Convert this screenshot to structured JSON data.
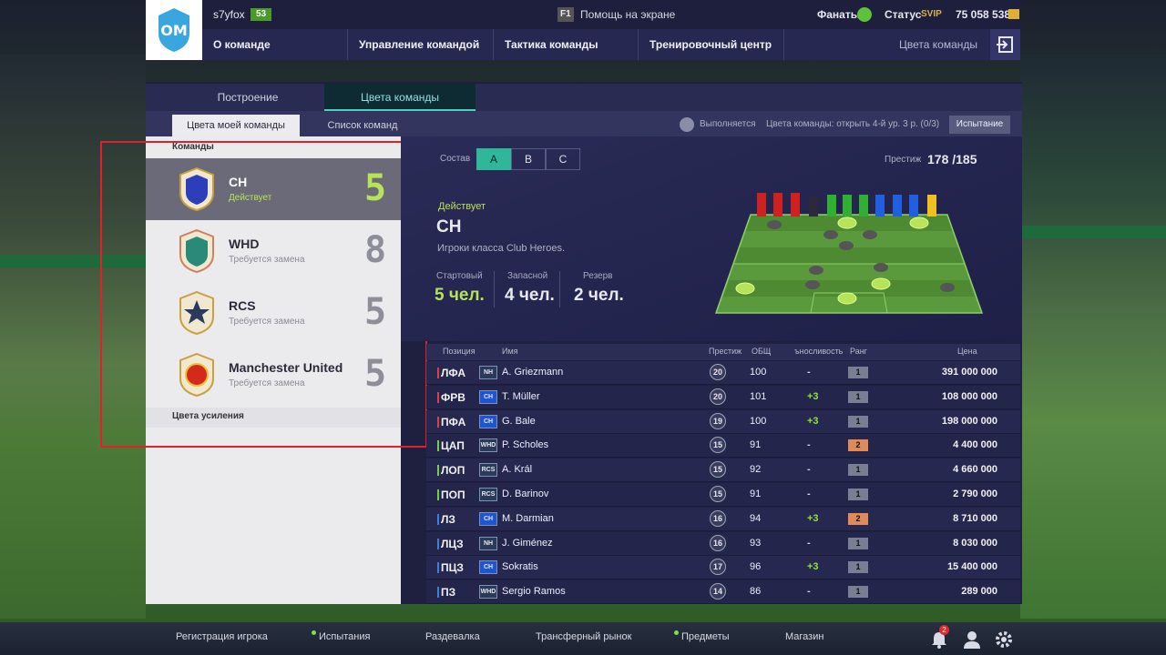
{
  "header": {
    "username": "s7yfox",
    "level": "53",
    "help_key": "F1",
    "help_text": "Помощь на экране",
    "fans_label": "Фанаты",
    "status_label": "Статус",
    "status_value": "SVIP",
    "coins": "75 058 538"
  },
  "nav": {
    "items": [
      "О команде",
      "Управление командой",
      "Тактика команды",
      "Тренировочный центр",
      "Цвета команды"
    ]
  },
  "tabs": {
    "primary": [
      "Построение",
      "Цвета команды"
    ],
    "secondary": [
      "Цвета моей команды",
      "Список команд"
    ],
    "quest_status": "Выполняется",
    "quest_text": "Цвета команды: открыть 4-й ур. 3 р. (0/3)",
    "quest_button": "Испытание"
  },
  "teams": {
    "section_title": "Команды",
    "footer_title": "Цвета усиления",
    "items": [
      {
        "name": "CH",
        "status": "Действует",
        "count": "5"
      },
      {
        "name": "WHD",
        "status": "Требуется замена",
        "count": "8"
      },
      {
        "name": "RCS",
        "status": "Требуется замена",
        "count": "5"
      },
      {
        "name": "Manchester United",
        "status": "Требуется замена",
        "count": "5"
      }
    ]
  },
  "lineup": {
    "label": "Состав",
    "options": [
      "A",
      "B",
      "C"
    ],
    "prestige_label": "Престиж",
    "prestige_value": "178 /185",
    "active_label": "Действует",
    "team_name": "CH",
    "description": "Игроки класса Club Heroes.",
    "stats": [
      {
        "label": "Стартовый",
        "value": "5 чел."
      },
      {
        "label": "Запасной",
        "value": "4 чел."
      },
      {
        "label": "Резерв",
        "value": "2 чел."
      }
    ]
  },
  "table": {
    "headers": {
      "position": "Позиция",
      "name": "Имя",
      "prestige": "Престиж",
      "ovr": "ОБЩ",
      "dev": "ъносливость",
      "rank": "Ранг",
      "price": "Цена"
    },
    "rows": [
      {
        "pos": "ЛФА",
        "club": "NH",
        "name": "A. Griezmann",
        "prestige": "20",
        "ovr": "100",
        "dev": "-",
        "rank": "1",
        "price": "391 000 000",
        "bar": "#e04040",
        "clubcolor": "#2a3b5a"
      },
      {
        "pos": "ФРВ",
        "club": "CH",
        "name": "T. Müller",
        "prestige": "20",
        "ovr": "101",
        "dev": "+3",
        "rank": "1",
        "price": "108 000 000",
        "bar": "#e04040",
        "clubcolor": "#1e55d6"
      },
      {
        "pos": "ПФА",
        "club": "CH",
        "name": "G. Bale",
        "prestige": "19",
        "ovr": "100",
        "dev": "+3",
        "rank": "1",
        "price": "198 000 000",
        "bar": "#e04040",
        "clubcolor": "#1e55d6"
      },
      {
        "pos": "ЦАП",
        "club": "WHD",
        "name": "P. Scholes",
        "prestige": "15",
        "ovr": "91",
        "dev": "-",
        "rank": "2",
        "price": "4 400 000",
        "bar": "#6fd14a",
        "clubcolor": "#2a3b5a"
      },
      {
        "pos": "ЛОП",
        "club": "RCS",
        "name": "A. Král",
        "prestige": "15",
        "ovr": "92",
        "dev": "-",
        "rank": "1",
        "price": "4 660 000",
        "bar": "#6fd14a",
        "clubcolor": "#2a3b5a"
      },
      {
        "pos": "ПОП",
        "club": "RCS",
        "name": "D. Barinov",
        "prestige": "15",
        "ovr": "91",
        "dev": "-",
        "rank": "1",
        "price": "2 790 000",
        "bar": "#6fd14a",
        "clubcolor": "#2a3b5a"
      },
      {
        "pos": "ЛЗ",
        "club": "CH",
        "name": "M. Darmian",
        "prestige": "16",
        "ovr": "94",
        "dev": "+3",
        "rank": "2",
        "price": "8 710 000",
        "bar": "#3f7de0",
        "clubcolor": "#1e55d6"
      },
      {
        "pos": "ЛЦЗ",
        "club": "NH",
        "name": "J. Giménez",
        "prestige": "16",
        "ovr": "93",
        "dev": "-",
        "rank": "1",
        "price": "8 030 000",
        "bar": "#3f7de0",
        "clubcolor": "#2a3b5a"
      },
      {
        "pos": "ПЦЗ",
        "club": "CH",
        "name": "Sokratis",
        "prestige": "17",
        "ovr": "96",
        "dev": "+3",
        "rank": "1",
        "price": "15 400 000",
        "bar": "#3f7de0",
        "clubcolor": "#1e55d6"
      },
      {
        "pos": "ПЗ",
        "club": "WHD",
        "name": "Sergio Ramos",
        "prestige": "14",
        "ovr": "86",
        "dev": "-",
        "rank": "1",
        "price": "289 000",
        "bar": "#3f7de0",
        "clubcolor": "#2a3b5a"
      }
    ]
  },
  "bottom_nav": [
    "Регистрация игрока",
    "Испытания",
    "Раздевалка",
    "Трансферный рынок",
    "Предметы",
    "Магазин"
  ],
  "notifications": "2",
  "colors": {
    "accent_green": "#8fe23e",
    "panel": "#1f1f3f",
    "active_tab": "#0e2a33"
  }
}
